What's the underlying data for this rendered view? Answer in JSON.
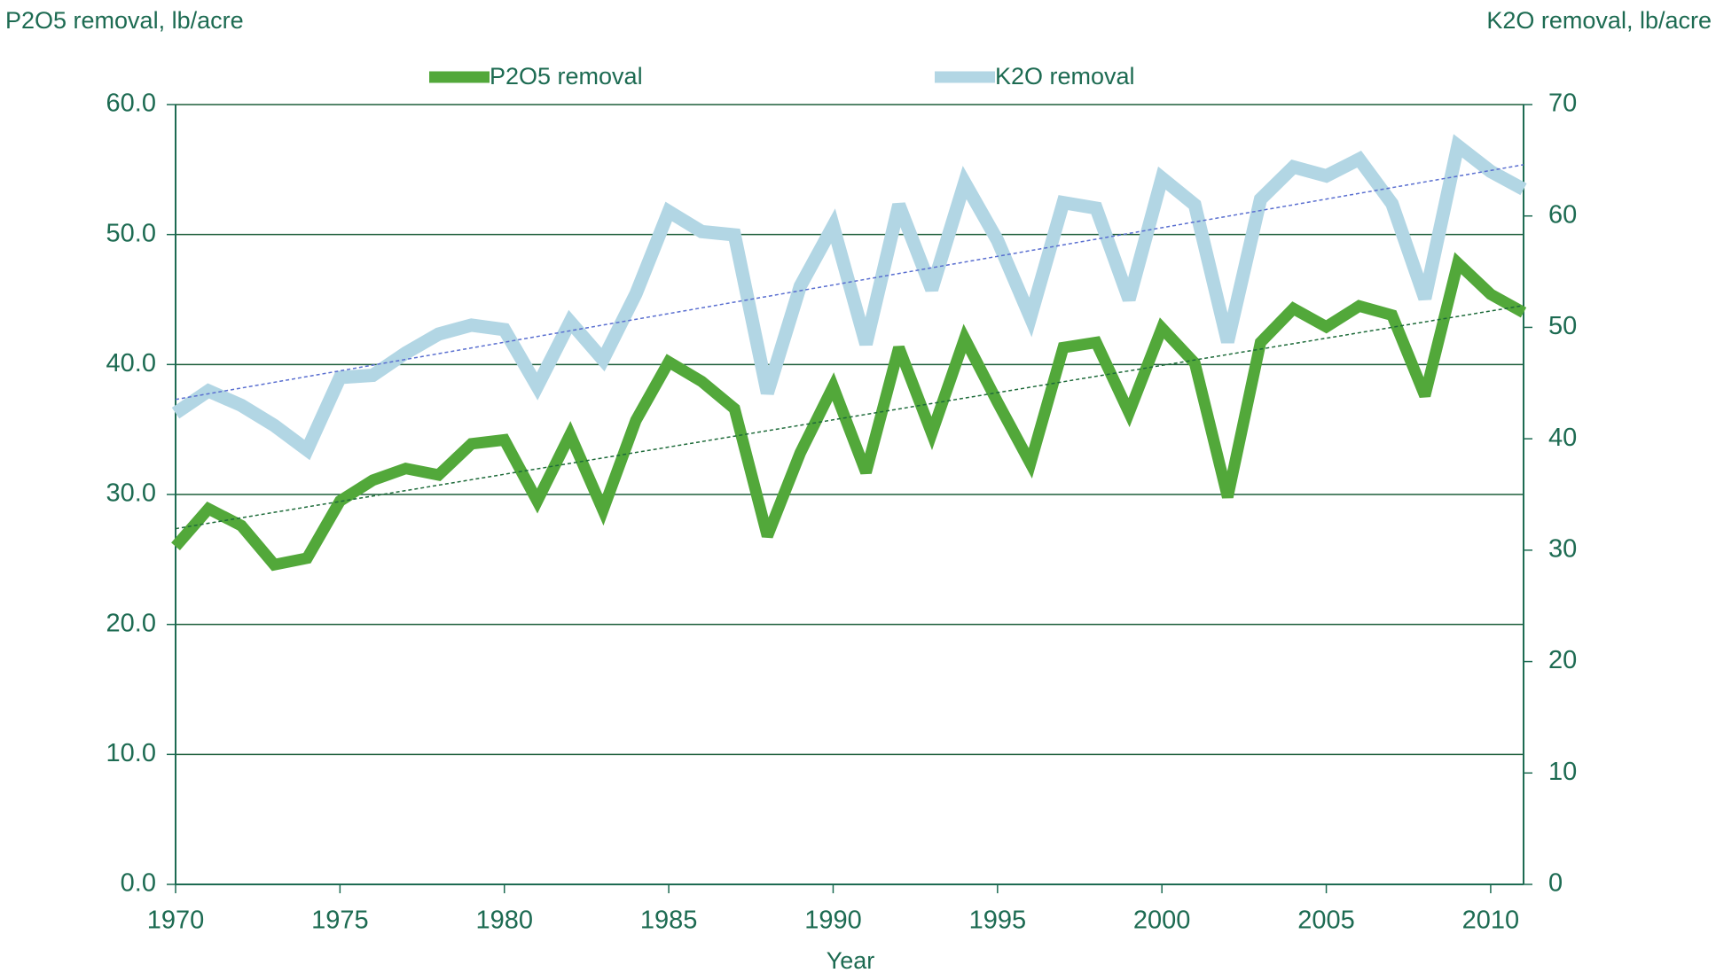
{
  "chart_data": {
    "type": "line",
    "y_label": "P2O5 removal, lb/acre",
    "y2_label": "K2O removal, lb/acre",
    "x_label": "Year",
    "x": [
      1970,
      1971,
      1972,
      1973,
      1974,
      1975,
      1976,
      1977,
      1978,
      1979,
      1980,
      1981,
      1982,
      1983,
      1984,
      1985,
      1986,
      1987,
      1988,
      1989,
      1990,
      1991,
      1992,
      1993,
      1994,
      1995,
      1996,
      1997,
      1998,
      1999,
      2000,
      2001,
      2002,
      2003,
      2004,
      2005,
      2006,
      2007,
      2008,
      2009,
      2010,
      2011
    ],
    "xlim": [
      1970,
      2011
    ],
    "xticks": [
      1970,
      1975,
      1980,
      1985,
      1990,
      1995,
      2000,
      2005,
      2010
    ],
    "ylim": [
      0,
      60
    ],
    "yticks": [
      {
        "value": 0,
        "label": "0.0"
      },
      {
        "value": 10,
        "label": "10.0"
      },
      {
        "value": 20,
        "label": "20.0"
      },
      {
        "value": 30,
        "label": "30.0"
      },
      {
        "value": 40,
        "label": "40.0"
      },
      {
        "value": 50,
        "label": "50.0"
      },
      {
        "value": 60,
        "label": "60.0"
      }
    ],
    "y2lim": [
      0,
      70
    ],
    "y2ticks": [
      0,
      10,
      20,
      30,
      40,
      50,
      60,
      70
    ],
    "grid": true,
    "trendline": true,
    "series": [
      {
        "name": "P2O5 removal",
        "color": "#52a83a",
        "trend_color": "#1e6b3a",
        "values": [
          26.0,
          28.9,
          27.6,
          24.6,
          25.1,
          29.5,
          31.1,
          32.0,
          31.5,
          33.9,
          34.2,
          29.5,
          34.6,
          28.8,
          35.7,
          40.2,
          38.7,
          36.6,
          26.8,
          33.2,
          38.3,
          31.7,
          41.3,
          34.7,
          42.0,
          37.1,
          32.4,
          41.3,
          41.7,
          36.3,
          42.8,
          40.1,
          29.8,
          41.7,
          44.3,
          42.9,
          44.5,
          43.8,
          37.6,
          47.8,
          45.4,
          44.0
        ]
      },
      {
        "name": "K2O removal",
        "color": "#b2d6e4",
        "trend_color": "#5a6fd0",
        "axis": "y2",
        "values": [
          42.3,
          44.3,
          43.0,
          41.2,
          39.0,
          45.5,
          45.7,
          47.7,
          49.4,
          50.2,
          49.8,
          44.7,
          50.5,
          47.1,
          53.0,
          60.4,
          58.6,
          58.3,
          44.1,
          53.7,
          59.1,
          48.5,
          61.0,
          53.4,
          63.0,
          57.8,
          50.9,
          61.2,
          60.7,
          52.5,
          63.4,
          61.0,
          48.7,
          61.5,
          64.4,
          63.6,
          65.1,
          61.1,
          52.6,
          66.3,
          64.0,
          62.4
        ]
      }
    ]
  }
}
